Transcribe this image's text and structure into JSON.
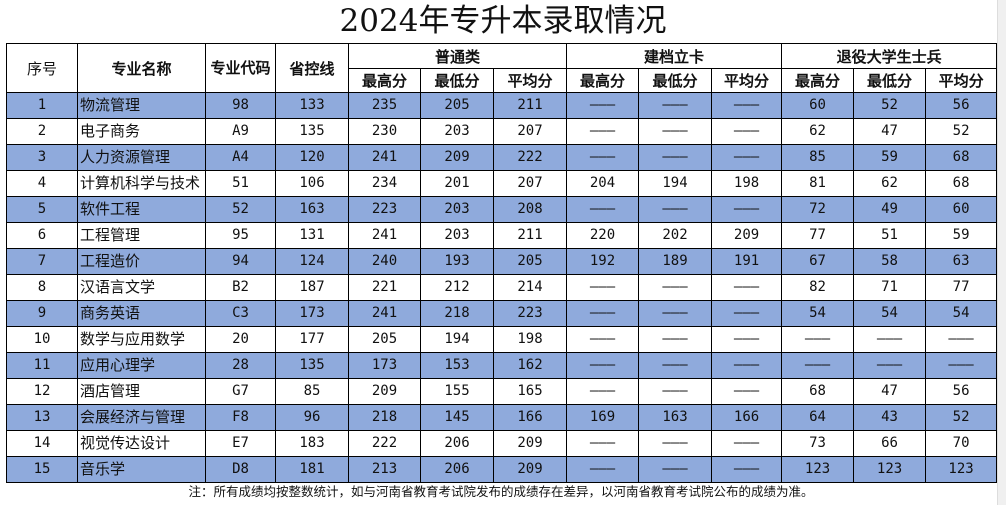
{
  "title": "2024年专升本录取情况",
  "headers": {
    "seq": "序号",
    "name": "专业名称",
    "code": "专业代码",
    "control_line": "省控线",
    "groups": [
      "普通类",
      "建档立卡",
      "退役大学生士兵"
    ],
    "sub": [
      "最高分",
      "最低分",
      "平均分"
    ]
  },
  "highlight_color": "#8faadc",
  "rows": [
    [
      "1",
      "物流管理",
      "98",
      "133",
      "235",
      "205",
      "211",
      "———",
      "———",
      "———",
      "60",
      "52",
      "56"
    ],
    [
      "2",
      "电子商务",
      "A9",
      "135",
      "230",
      "203",
      "207",
      "———",
      "———",
      "———",
      "62",
      "47",
      "52"
    ],
    [
      "3",
      "人力资源管理",
      "A4",
      "120",
      "241",
      "209",
      "222",
      "———",
      "———",
      "———",
      "85",
      "59",
      "68"
    ],
    [
      "4",
      "计算机科学与技术",
      "51",
      "106",
      "234",
      "201",
      "207",
      "204",
      "194",
      "198",
      "81",
      "62",
      "68"
    ],
    [
      "5",
      "软件工程",
      "52",
      "163",
      "223",
      "203",
      "208",
      "———",
      "———",
      "———",
      "72",
      "49",
      "60"
    ],
    [
      "6",
      "工程管理",
      "95",
      "131",
      "241",
      "203",
      "211",
      "220",
      "202",
      "209",
      "77",
      "51",
      "59"
    ],
    [
      "7",
      "工程造价",
      "94",
      "124",
      "240",
      "193",
      "205",
      "192",
      "189",
      "191",
      "67",
      "58",
      "63"
    ],
    [
      "8",
      "汉语言文学",
      "B2",
      "187",
      "221",
      "212",
      "214",
      "———",
      "———",
      "———",
      "82",
      "71",
      "77"
    ],
    [
      "9",
      "商务英语",
      "C3",
      "173",
      "241",
      "218",
      "223",
      "———",
      "———",
      "———",
      "54",
      "54",
      "54"
    ],
    [
      "10",
      "数学与应用数学",
      "20",
      "177",
      "205",
      "194",
      "198",
      "———",
      "———",
      "———",
      "———",
      "———",
      "———"
    ],
    [
      "11",
      "应用心理学",
      "28",
      "135",
      "173",
      "153",
      "162",
      "———",
      "———",
      "———",
      "———",
      "———",
      "———"
    ],
    [
      "12",
      "酒店管理",
      "G7",
      "85",
      "209",
      "155",
      "165",
      "———",
      "———",
      "———",
      "68",
      "47",
      "56"
    ],
    [
      "13",
      "会展经济与管理",
      "F8",
      "96",
      "218",
      "145",
      "166",
      "169",
      "163",
      "166",
      "64",
      "43",
      "52"
    ],
    [
      "14",
      "视觉传达设计",
      "E7",
      "183",
      "222",
      "206",
      "209",
      "———",
      "———",
      "———",
      "73",
      "66",
      "70"
    ],
    [
      "15",
      "音乐学",
      "D8",
      "181",
      "213",
      "206",
      "209",
      "———",
      "———",
      "———",
      "123",
      "123",
      "123"
    ]
  ],
  "note": "注：所有成绩均按整数统计，如与河南省教育考试院发布的成绩存在差异，以河南省教育考试院公布的成绩为准。"
}
